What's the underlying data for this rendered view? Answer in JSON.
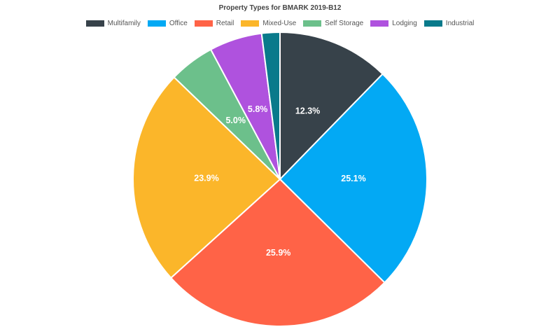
{
  "chart_data": {
    "type": "pie",
    "title": "Property Types for BMARK 2019-B12",
    "legend_position": "top",
    "slices": [
      {
        "name": "Multifamily",
        "label": "12.3%",
        "value": 12.3,
        "color": "#37424A"
      },
      {
        "name": "Office",
        "label": "25.1%",
        "value": 25.1,
        "color": "#03A9F4"
      },
      {
        "name": "Retail",
        "label": "25.9%",
        "value": 25.9,
        "color": "#FF6347"
      },
      {
        "name": "Mixed-Use",
        "label": "23.9%",
        "value": 23.9,
        "color": "#FBB62A"
      },
      {
        "name": "Self Storage",
        "label": "5.0%",
        "value": 5.0,
        "color": "#6CC08B"
      },
      {
        "name": "Lodging",
        "label": "5.8%",
        "value": 5.8,
        "color": "#AF52DE"
      },
      {
        "name": "Industrial",
        "label": "",
        "value": 2.0,
        "color": "#097A8B"
      }
    ]
  }
}
